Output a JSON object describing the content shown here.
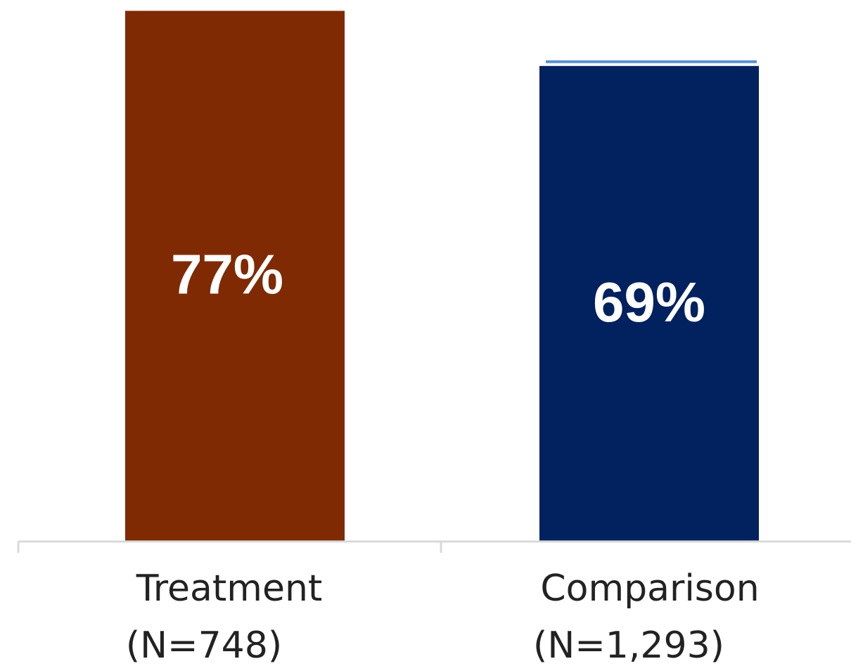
{
  "chart_data": {
    "type": "bar",
    "categories": [
      {
        "name": "Treatment",
        "n": "(N=748)"
      },
      {
        "name": "Comparison",
        "n": "(N=1,293)"
      }
    ],
    "values": [
      77,
      69
    ],
    "value_labels": [
      "77%",
      "69%"
    ],
    "colors": [
      "#7f2a02",
      "#02215f"
    ],
    "ylim": [
      0,
      100
    ],
    "grid": false,
    "legend": "none"
  }
}
